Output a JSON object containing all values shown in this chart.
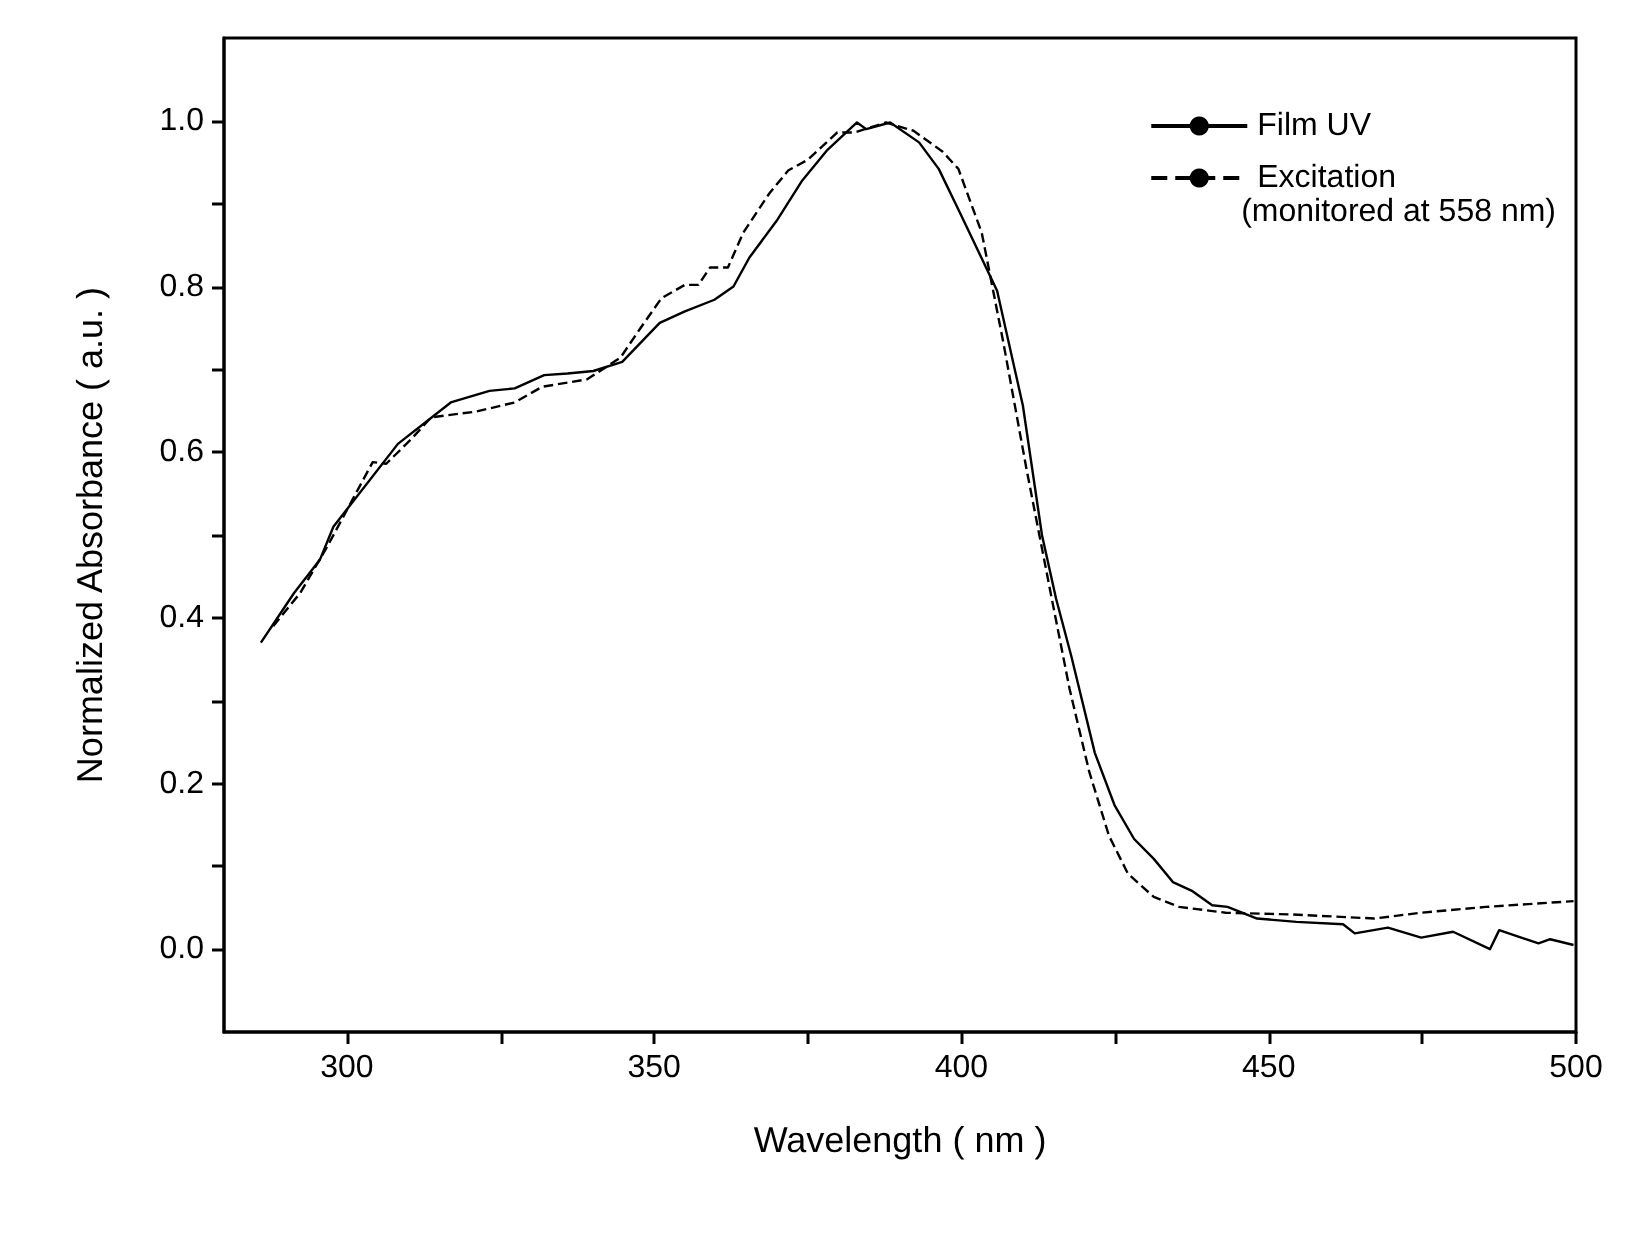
{
  "chart_data": {
    "type": "line",
    "xlabel": "Wavelength ( nm )",
    "ylabel": "Normalized Absorbance ( a.u. )",
    "xlim": [
      280,
      500
    ],
    "ylim": [
      -0.1,
      1.1
    ],
    "xticks": [
      300,
      {
        "value": 325,
        "label": null
      },
      350,
      {
        "value": 375,
        "label": null
      },
      400,
      {
        "value": 425,
        "label": null
      },
      450,
      {
        "value": 475,
        "label": null
      },
      500
    ],
    "yticks": [
      "0.0",
      {
        "value": 0.1,
        "label": null
      },
      {
        "value": 0.2,
        "label": "0.2"
      },
      {
        "value": 0.3,
        "label": null
      },
      {
        "value": 0.4,
        "label": "0.4"
      },
      {
        "value": 0.5,
        "label": null
      },
      {
        "value": 0.6,
        "label": "0.6"
      },
      {
        "value": 0.7,
        "label": null
      },
      {
        "value": 0.8,
        "label": "0.8"
      },
      {
        "value": 0.9,
        "label": null
      },
      {
        "value": 1,
        "label": "1.0"
      }
    ],
    "grid": false,
    "legend": "top right",
    "marker": "none",
    "annotations": [
      "(monitored at 558 nm)"
    ],
    "series": [
      {
        "name": "Film UV",
        "color": "#000000",
        "line_style": "solid",
        "x": [
          286,
          291.4,
          295.6,
          297.8,
          308.3,
          316.9,
          323.2,
          327.3,
          332.1,
          335.9,
          340.1,
          344.8,
          350.9,
          355,
          359.8,
          362.9,
          365.5,
          369.9,
          374.1,
          378.2,
          383,
          384.5,
          388.4,
          393.1,
          396.3,
          399.5,
          405.8,
          410,
          413.1,
          415.4,
          417.9,
          421.7,
          424.9,
          428.1,
          431.3,
          434.4,
          437.6,
          440.8,
          443.3,
          448.1,
          454.5,
          462.1,
          464,
          469.4,
          474.8,
          480,
          486,
          487.5,
          493.9,
          495.8,
          499.6
        ],
        "values": [
          0.37,
          0.43,
          0.47,
          0.51,
          0.61,
          0.66,
          0.674,
          0.677,
          0.693,
          0.695,
          0.698,
          0.709,
          0.756,
          0.77,
          0.784,
          0.8,
          0.835,
          0.879,
          0.928,
          0.965,
          0.998,
          0.99,
          0.998,
          0.974,
          0.942,
          0.893,
          0.795,
          0.656,
          0.5,
          0.423,
          0.353,
          0.237,
          0.174,
          0.133,
          0.109,
          0.081,
          0.07,
          0.053,
          0.051,
          0.037,
          0.033,
          0.03,
          0.019,
          0.026,
          0.014,
          0.021,
          0.0,
          0.023,
          0.007,
          0.012,
          0.005
        ]
      },
      {
        "name": "Excitation",
        "color": "#000000",
        "line_style": "dashed",
        "x": [
          288,
          292.4,
          296.8,
          301,
          304.2,
          306.4,
          310.5,
          313.7,
          321,
          327.3,
          331.8,
          335.9,
          339.1,
          344.5,
          347.7,
          351.2,
          355,
          357.2,
          359.1,
          362,
          364.5,
          368.7,
          371.8,
          375,
          379.8,
          382.6,
          387.7,
          392.2,
          396.9,
          399.5,
          403.3,
          406.8,
          410.6,
          414.7,
          417.6,
          420.8,
          424,
          427.1,
          431.3,
          435.4,
          443,
          453.5,
          467.2,
          474.8,
          485.3,
          499.6
        ],
        "values": [
          0.39,
          0.43,
          0.486,
          0.544,
          0.588,
          0.586,
          0.616,
          0.642,
          0.649,
          0.66,
          0.679,
          0.684,
          0.688,
          0.714,
          0.749,
          0.786,
          0.802,
          0.802,
          0.823,
          0.823,
          0.865,
          0.912,
          0.94,
          0.953,
          0.986,
          0.986,
          0.998,
          0.988,
          0.963,
          0.942,
          0.865,
          0.733,
          0.579,
          0.423,
          0.314,
          0.214,
          0.137,
          0.091,
          0.063,
          0.051,
          0.044,
          0.042,
          0.037,
          0.044,
          0.051,
          0.058
        ]
      }
    ]
  }
}
